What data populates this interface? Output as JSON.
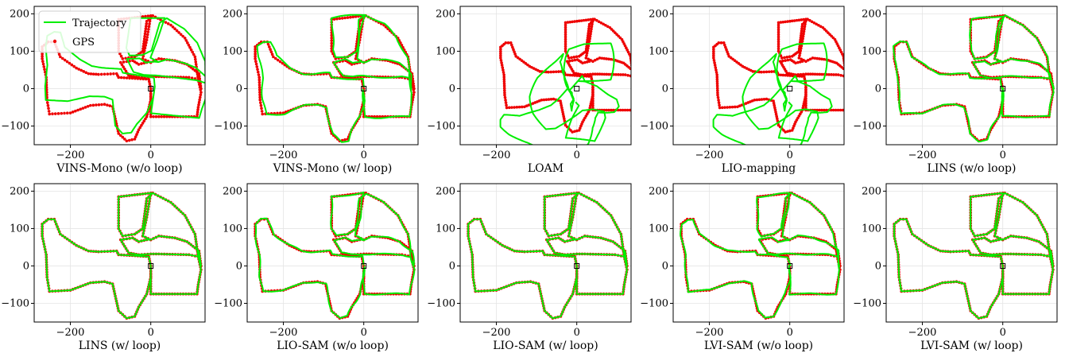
{
  "colors": {
    "trajectory": "#00ee00",
    "gps": "#ee0000",
    "grid": "#e4e4e4",
    "axis": "#000000"
  },
  "legend": {
    "trajectory": "Trajectory",
    "gps": "GPS"
  },
  "axes": {
    "xlim": [
      -290,
      135
    ],
    "ylim": [
      -150,
      220
    ],
    "xticks": [
      -200,
      0
    ],
    "yticks": [
      -100,
      0,
      100,
      200
    ],
    "xtick_labels": [
      "−200",
      "0"
    ],
    "ytick_labels": [
      "−100",
      "0",
      "100",
      "200"
    ]
  },
  "chart_data": {
    "type": "scatter",
    "gps_route": [
      [
        0,
        0
      ],
      [
        -5,
        25
      ],
      [
        -80,
        30
      ],
      [
        -85,
        40
      ],
      [
        -130,
        38
      ],
      [
        -155,
        40
      ],
      [
        -185,
        55
      ],
      [
        -225,
        85
      ],
      [
        -240,
        125
      ],
      [
        -255,
        125
      ],
      [
        -270,
        112
      ],
      [
        -270,
        80
      ],
      [
        -260,
        30
      ],
      [
        -258,
        -30
      ],
      [
        -252,
        -68
      ],
      [
        -200,
        -65
      ],
      [
        -150,
        -45
      ],
      [
        -115,
        -42
      ],
      [
        -95,
        -48
      ],
      [
        -80,
        -120
      ],
      [
        -60,
        -140
      ],
      [
        -40,
        -135
      ],
      [
        -30,
        -110
      ],
      [
        -10,
        -75
      ],
      [
        0,
        -30
      ],
      [
        0,
        0
      ],
      [
        0,
        -75
      ],
      [
        60,
        -75
      ],
      [
        115,
        -75
      ],
      [
        118,
        -50
      ],
      [
        125,
        -10
      ],
      [
        118,
        25
      ],
      [
        95,
        30
      ],
      [
        20,
        32
      ],
      [
        0,
        32
      ],
      [
        -30,
        30
      ],
      [
        -55,
        35
      ],
      [
        -75,
        70
      ],
      [
        -45,
        75
      ],
      [
        -30,
        65
      ],
      [
        -10,
        70
      ],
      [
        0,
        70
      ],
      [
        20,
        80
      ],
      [
        60,
        75
      ],
      [
        90,
        65
      ],
      [
        120,
        40
      ],
      [
        125,
        0
      ],
      [
        118,
        25
      ],
      [
        110,
        85
      ],
      [
        85,
        135
      ],
      [
        50,
        170
      ],
      [
        5,
        195
      ],
      [
        -10,
        180
      ],
      [
        -20,
        100
      ],
      [
        -40,
        85
      ],
      [
        -70,
        80
      ],
      [
        -80,
        100
      ],
      [
        -80,
        185
      ],
      [
        -40,
        190
      ],
      [
        0,
        195
      ],
      [
        -10,
        130
      ],
      [
        -20,
        80
      ],
      [
        0,
        70
      ]
    ],
    "panels": [
      {
        "label": "VINS-Mono (w/o loop)",
        "drift": "rotated-scaled"
      },
      {
        "label": "VINS-Mono (w/ loop)",
        "drift": "small"
      },
      {
        "label": "LOAM",
        "drift": "failed"
      },
      {
        "label": "LIO-mapping",
        "drift": "failed"
      },
      {
        "label": "LINS (w/o loop)",
        "drift": "tiny"
      },
      {
        "label": "LINS (w/ loop)",
        "drift": "none"
      },
      {
        "label": "LIO-SAM (w/o loop)",
        "drift": "tiny"
      },
      {
        "label": "LIO-SAM (w/ loop)",
        "drift": "none"
      },
      {
        "label": "LVI-SAM (w/o loop)",
        "drift": "tiny"
      },
      {
        "label": "LVI-SAM (w/ loop)",
        "drift": "none"
      }
    ]
  }
}
